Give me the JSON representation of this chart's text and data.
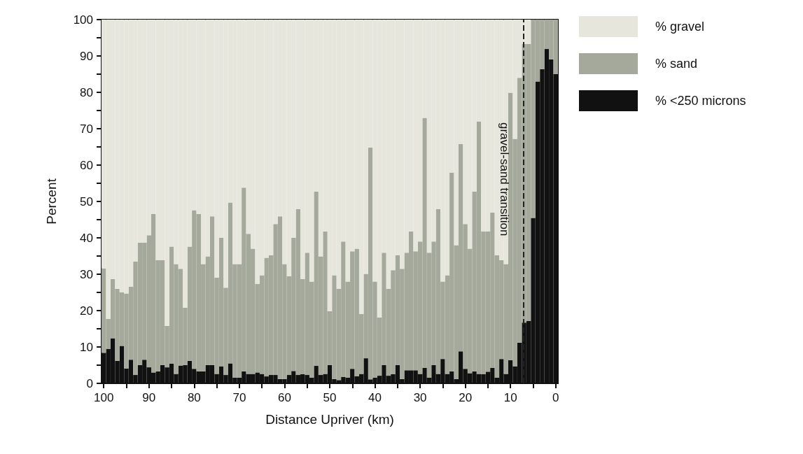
{
  "chart_data": {
    "type": "bar",
    "stacked": true,
    "xlabel": "Distance Upriver (km)",
    "ylabel": "Percent",
    "x": [
      100,
      99,
      98,
      97,
      96,
      95,
      94,
      93,
      92,
      91,
      90,
      89,
      88,
      87,
      86,
      85,
      84,
      83,
      82,
      81,
      80,
      79,
      78,
      77,
      76,
      75,
      74,
      73,
      72,
      71,
      70,
      69,
      68,
      67,
      66,
      65,
      64,
      63,
      62,
      61,
      60,
      59,
      58,
      57,
      56,
      55,
      54,
      53,
      52,
      51,
      50,
      49,
      48,
      47,
      46,
      45,
      44,
      43,
      42,
      41,
      40,
      39,
      38,
      37,
      36,
      35,
      34,
      33,
      32,
      31,
      30,
      29,
      28,
      27,
      26,
      25,
      24,
      23,
      22,
      21,
      20,
      19,
      18,
      17,
      16,
      15,
      14,
      13,
      12,
      11,
      10,
      9,
      8,
      7,
      6,
      5,
      4,
      3,
      2,
      1,
      0
    ],
    "series": [
      {
        "name": "% <250 microns",
        "color": "#111111",
        "values": [
          8.4,
          9.5,
          12.4,
          6.2,
          10.3,
          4.1,
          6.5,
          2.3,
          5.0,
          6.5,
          4.4,
          3.0,
          3.3,
          5.0,
          4.4,
          5.4,
          2.6,
          4.9,
          5.0,
          6.2,
          4.0,
          3.3,
          3.3,
          5.0,
          5.0,
          2.6,
          4.7,
          2.3,
          5.5,
          1.6,
          1.6,
          3.3,
          2.6,
          2.6,
          3.0,
          2.6,
          1.9,
          2.3,
          2.3,
          1.2,
          1.2,
          2.3,
          3.4,
          2.3,
          2.5,
          2.3,
          1.6,
          4.8,
          2.3,
          2.6,
          5.0,
          1.2,
          0.9,
          1.8,
          1.6,
          4.0,
          1.9,
          2.6,
          6.9,
          1.1,
          1.6,
          2.1,
          5.0,
          2.1,
          2.5,
          5.0,
          1.2,
          3.6,
          3.6,
          3.6,
          2.6,
          4.3,
          1.6,
          5.0,
          2.6,
          6.7,
          2.6,
          3.3,
          1.2,
          8.8,
          4.0,
          2.8,
          3.3,
          2.6,
          2.5,
          3.2,
          4.3,
          1.6,
          6.7,
          2.6,
          6.4,
          4.7,
          11.2,
          16.7,
          17.2,
          45.5,
          83.0,
          86.4,
          91.9,
          89.1,
          85.0
        ]
      },
      {
        "name": "% sand",
        "color": "#a4a99b",
        "values": [
          23.2,
          8.2,
          16.3,
          19.8,
          14.7,
          20.6,
          20.1,
          31.2,
          33.7,
          32.2,
          36.3,
          43.6,
          30.6,
          28.9,
          11.4,
          32.2,
          30.2,
          26.6,
          15.8,
          31.4,
          43.6,
          43.3,
          29.5,
          29.9,
          40.9,
          26.5,
          35.3,
          24.0,
          44.2,
          31.2,
          31.2,
          50.5,
          38.5,
          34.4,
          24.3,
          27.1,
          32.6,
          32.9,
          41.5,
          44.7,
          31.6,
          27.1,
          36.6,
          45.6,
          26.2,
          33.6,
          26.4,
          47.9,
          32.6,
          39.2,
          14.8,
          28.5,
          25.1,
          37.2,
          26.4,
          32.3,
          35.1,
          16.5,
          23.2,
          63.7,
          26.4,
          16.0,
          30.9,
          23.9,
          28.6,
          30.2,
          30.3,
          32.3,
          38.2,
          32.7,
          36.4,
          68.7,
          34.3,
          34.0,
          45.3,
          21.3,
          27.1,
          54.6,
          36.8,
          57.0,
          39.8,
          34.2,
          49.4,
          69.4,
          39.3,
          38.6,
          42.6,
          33.6,
          27.2,
          30.2,
          73.5,
          62.5,
          72.8,
          76.6,
          76.1,
          54.5,
          17.0,
          13.6,
          8.1,
          10.9,
          15.0
        ]
      },
      {
        "name": "% gravel",
        "color": "#e6e6dd",
        "values": [
          68.4,
          82.3,
          71.3,
          74.0,
          75.0,
          75.3,
          73.4,
          66.5,
          61.3,
          61.3,
          59.3,
          53.4,
          66.1,
          66.1,
          84.2,
          62.4,
          67.2,
          68.5,
          79.2,
          62.4,
          52.4,
          53.4,
          67.2,
          65.1,
          54.1,
          70.9,
          60.0,
          73.7,
          50.3,
          67.2,
          67.2,
          46.2,
          58.9,
          63.0,
          72.7,
          70.3,
          65.5,
          64.8,
          56.2,
          54.1,
          67.2,
          70.6,
          60.0,
          52.1,
          71.3,
          64.1,
          72.0,
          47.3,
          65.1,
          58.2,
          80.2,
          70.3,
          74.0,
          61.0,
          72.0,
          63.7,
          63.0,
          80.9,
          69.9,
          35.2,
          72.0,
          81.9,
          64.1,
          74.0,
          68.9,
          64.8,
          68.5,
          64.1,
          58.2,
          63.7,
          61.0,
          27.0,
          64.1,
          61.0,
          52.1,
          72.0,
          70.3,
          42.1,
          62.0,
          34.2,
          56.2,
          63.0,
          47.3,
          28.0,
          58.2,
          58.2,
          53.1,
          64.8,
          66.1,
          67.2,
          20.1,
          32.8,
          16.0,
          6.7,
          6.7,
          0,
          0,
          0,
          0,
          0,
          0
        ]
      }
    ],
    "xlim": [
      100.5,
      -0.5
    ],
    "xticks": [
      100,
      {
        "value": 95,
        "label": null
      },
      90,
      {
        "value": 85,
        "label": null
      },
      80,
      {
        "value": 75,
        "label": null
      },
      70,
      {
        "value": 65,
        "label": null
      },
      60,
      {
        "value": 55,
        "label": null
      },
      50,
      {
        "value": 45,
        "label": null
      },
      40,
      {
        "value": 35,
        "label": null
      },
      30,
      {
        "value": 25,
        "label": null
      },
      20,
      {
        "value": 15,
        "label": null
      },
      10,
      {
        "value": 5,
        "label": null
      },
      0
    ],
    "ylim": [
      0,
      100
    ],
    "yticks": [
      0,
      {
        "value": 5,
        "label": null
      },
      10,
      {
        "value": 15,
        "label": null
      },
      20,
      {
        "value": 25,
        "label": null
      },
      30,
      {
        "value": 35,
        "label": null
      },
      40,
      {
        "value": 45,
        "label": null
      },
      50,
      {
        "value": 55,
        "label": null
      },
      60,
      {
        "value": 65,
        "label": null
      },
      70,
      {
        "value": 75,
        "label": null
      },
      80,
      {
        "value": 85,
        "label": null
      },
      90,
      {
        "value": 95,
        "label": null
      },
      100
    ],
    "ref_lines": [
      {
        "axis": "x",
        "value": 7.2,
        "label": "gravel-sand transition",
        "line_style": "dashed",
        "color": "#222222"
      }
    ],
    "legend": "top right",
    "grid": false
  }
}
